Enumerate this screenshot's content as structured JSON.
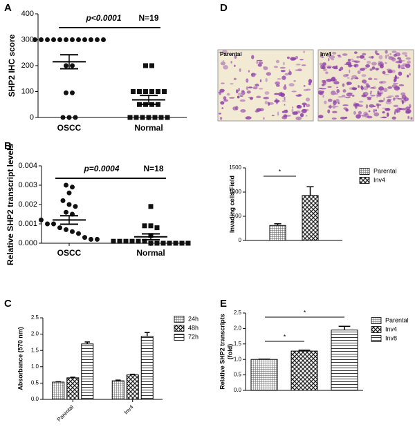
{
  "micrographs": [
    {
      "label": "Parental"
    },
    {
      "label": "Inv4"
    }
  ],
  "chart_data": [
    {
      "type": "dot",
      "panel": "A",
      "ylabel": "SHP2 IHC score",
      "categories": [
        "OSCC",
        "Normal"
      ],
      "groups": [
        {
          "marker": "circle",
          "values": [
            300,
            300,
            300,
            300,
            300,
            300,
            300,
            300,
            300,
            300,
            300,
            300,
            200,
            200,
            95,
            95,
            0,
            0,
            0
          ],
          "mean": 215,
          "sem": 27
        },
        {
          "marker": "square",
          "values": [
            200,
            200,
            100,
            100,
            100,
            100,
            100,
            100,
            50,
            50,
            50,
            50,
            0,
            0,
            0,
            0,
            0,
            0,
            0
          ],
          "mean": 68,
          "sem": 17
        }
      ],
      "ylim": [
        0,
        400
      ],
      "yticks": [
        0,
        100,
        200,
        300,
        400
      ],
      "annotations": [
        "p<0.0001",
        "N=19"
      ]
    },
    {
      "type": "dot",
      "panel": "B",
      "ylabel": "Relative SHP2 transcript levels",
      "categories": [
        "OSCC",
        "Normal"
      ],
      "groups": [
        {
          "marker": "circle",
          "values": [
            0.003,
            0.0029,
            0.0026,
            0.0022,
            0.002,
            0.0019,
            0.0016,
            0.0015,
            0.0012,
            0.001,
            0.001,
            0.0008,
            0.0007,
            0.0006,
            0.0005,
            0.0003,
            0.0002,
            0.0002
          ],
          "mean": 0.0012,
          "sem": 0.00022
        },
        {
          "marker": "square",
          "values": [
            0.0019,
            0.0009,
            0.0009,
            0.0008,
            0.0004,
            0.0001,
            0.0001,
            0.0001,
            0.0001,
            0.0001,
            0.0001,
            0,
            0,
            0,
            0,
            0,
            0,
            0
          ],
          "mean": 0.00033,
          "sem": 0.00015
        }
      ],
      "ylim": [
        0,
        0.004
      ],
      "yticks": [
        {
          "value": 0,
          "label": "0.000"
        },
        {
          "value": 0.001,
          "label": "0.001"
        },
        {
          "value": 0.002,
          "label": "0.002"
        },
        {
          "value": 0.003,
          "label": "0.003"
        },
        {
          "value": 0.004,
          "label": "0.004"
        }
      ],
      "annotations": [
        "p=0.0004",
        "N=18"
      ]
    },
    {
      "type": "bar",
      "panel": "C",
      "ylabel": "Absorbance (570 nm)",
      "categories": [
        "Parental",
        "Inv4"
      ],
      "series": [
        {
          "name": "24h",
          "values": [
            0.53,
            0.57
          ],
          "errors": [
            0.01,
            0.02
          ]
        },
        {
          "name": "48h",
          "values": [
            0.66,
            0.75
          ],
          "errors": [
            0.02,
            0.02
          ]
        },
        {
          "name": "72h",
          "values": [
            1.7,
            1.93
          ],
          "errors": [
            0.06,
            0.12
          ]
        }
      ],
      "ylim": [
        0,
        2.5
      ],
      "yticks": [
        {
          "value": 0,
          "label": "0.0"
        },
        0.5,
        {
          "value": 1,
          "label": "1.0"
        },
        1.5,
        {
          "value": 2,
          "label": "2.0"
        },
        2.5
      ]
    },
    {
      "type": "bar",
      "panel": "D",
      "ylabel": "Invading cells/Field",
      "series": [
        {
          "name": "Parental",
          "values": [
            310
          ],
          "errors": [
            35
          ]
        },
        {
          "name": "Inv4",
          "values": [
            930
          ],
          "errors": [
            180
          ]
        }
      ],
      "ylim": [
        0,
        1500
      ],
      "yticks": [
        0,
        500,
        1000,
        1500
      ],
      "significance": [
        "*"
      ]
    },
    {
      "type": "bar",
      "panel": "E",
      "ylabel": [
        "Relative SHP2 transcripts",
        "(fold)"
      ],
      "series": [
        {
          "name": "Parental",
          "values": [
            1.0
          ],
          "errors": [
            0.01
          ]
        },
        {
          "name": "Inv4",
          "values": [
            1.27
          ],
          "errors": [
            0.03
          ]
        },
        {
          "name": "Inv8",
          "values": [
            1.95
          ],
          "errors": [
            0.12
          ]
        }
      ],
      "ylim": [
        0,
        2.5
      ],
      "yticks": [
        {
          "value": 0,
          "label": "0.0"
        },
        0.5,
        {
          "value": 1,
          "label": "1.0"
        },
        1.5,
        {
          "value": 2,
          "label": "2.0"
        },
        2.5
      ],
      "significance": [
        "*",
        "*"
      ]
    }
  ]
}
